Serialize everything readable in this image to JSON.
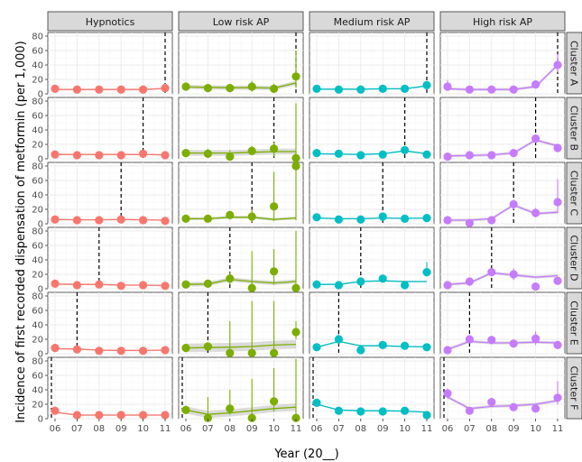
{
  "chart_data": {
    "type": "line",
    "ylabel": "Incidence of first recorded dispensation of metformin (per 1,000)",
    "xlabel": "Year (20__)",
    "x_tick_labels": [
      "06",
      "07",
      "08",
      "09",
      "10",
      "11"
    ],
    "y_tick_labels": [
      "0",
      "20",
      "40",
      "60",
      "80"
    ],
    "ylim": [
      0,
      85
    ],
    "x": [
      6,
      7,
      8,
      9,
      10,
      11
    ],
    "grid": true,
    "columns": [
      {
        "label": "Hypnotics",
        "color": "#f8766d"
      },
      {
        "label": "Low risk AP",
        "color": "#7cae00"
      },
      {
        "label": "Medium risk AP",
        "color": "#00bfc4"
      },
      {
        "label": "High risk AP",
        "color": "#c77cff"
      }
    ],
    "rows": [
      {
        "label": "Cluster A",
        "intervention_year": 11
      },
      {
        "label": "Cluster B",
        "intervention_year": 10
      },
      {
        "label": "Cluster C",
        "intervention_year": 9
      },
      {
        "label": "Cluster D",
        "intervention_year": 8
      },
      {
        "label": "Cluster E",
        "intervention_year": 7
      },
      {
        "label": "Cluster F",
        "intervention_year": 6
      }
    ],
    "panels": [
      [
        {
          "points": [
            7,
            6,
            6,
            6,
            6,
            8
          ],
          "lo": [
            5,
            5,
            5,
            5,
            5,
            4
          ],
          "hi": [
            9,
            8,
            8,
            8,
            8,
            12
          ],
          "fit": [
            6,
            6,
            6,
            6,
            6,
            7.5
          ],
          "band": 1
        },
        {
          "points": [
            10,
            8,
            8,
            10,
            7,
            24
          ],
          "lo": [
            7,
            5,
            5,
            3,
            1,
            8
          ],
          "hi": [
            13,
            11,
            12,
            18,
            14,
            60
          ],
          "fit": [
            9.5,
            9,
            8.5,
            8.5,
            8,
            15
          ],
          "band": 3
        },
        {
          "points": [
            7,
            6,
            6,
            7,
            7,
            12
          ],
          "lo": [
            5,
            4,
            4,
            5,
            5,
            8
          ],
          "hi": [
            9,
            8,
            8,
            9,
            9,
            16
          ],
          "fit": [
            6.5,
            6.5,
            6.5,
            7,
            7,
            11
          ],
          "band": 1
        },
        {
          "points": [
            10,
            6,
            6,
            6,
            13,
            40
          ],
          "lo": [
            6,
            3,
            3,
            3,
            8,
            30
          ],
          "hi": [
            19,
            10,
            10,
            10,
            18,
            55
          ],
          "fit": [
            7,
            6,
            6,
            6,
            10,
            40
          ],
          "band": 2
        }
      ],
      [
        {
          "points": [
            6,
            5,
            5,
            5,
            7,
            5
          ],
          "lo": [
            4,
            3,
            3,
            3,
            4,
            3
          ],
          "hi": [
            8,
            7,
            7,
            7,
            11,
            7
          ],
          "fit": [
            6,
            6,
            6,
            6,
            6,
            5.5
          ],
          "band": 1
        },
        {
          "points": [
            8,
            7,
            3,
            11,
            14,
            1
          ],
          "lo": [
            5,
            1,
            0,
            5,
            3,
            0
          ],
          "hi": [
            12,
            14,
            12,
            18,
            23,
            77
          ],
          "fit": [
            8,
            8,
            8,
            9,
            10,
            10
          ],
          "band": 4
        },
        {
          "points": [
            8,
            7,
            5,
            6,
            12,
            6
          ],
          "lo": [
            6,
            5,
            4,
            4,
            9,
            3
          ],
          "hi": [
            10,
            9,
            8,
            8,
            15,
            9
          ],
          "fit": [
            7,
            6.5,
            6,
            7,
            11,
            7
          ],
          "band": 1
        },
        {
          "points": [
            3,
            5,
            5,
            8,
            28,
            15
          ],
          "lo": [
            1,
            2,
            2,
            5,
            22,
            10
          ],
          "hi": [
            6,
            8,
            8,
            12,
            34,
            21
          ],
          "fit": [
            4,
            4.5,
            5.5,
            8,
            26,
            18
          ],
          "band": 2
        }
      ],
      [
        {
          "points": [
            6,
            5,
            5,
            6,
            5,
            4
          ],
          "lo": [
            4,
            3,
            3,
            4,
            3,
            2
          ],
          "hi": [
            8,
            7,
            7,
            8,
            7,
            6
          ],
          "fit": [
            6,
            5.5,
            5.5,
            6,
            5.5,
            5
          ],
          "band": 1
        },
        {
          "points": [
            7,
            7,
            12,
            10,
            24,
            80
          ],
          "lo": [
            4,
            4,
            6,
            2,
            4,
            5
          ],
          "hi": [
            10,
            10,
            18,
            20,
            72,
            83
          ],
          "fit": [
            7,
            7,
            9,
            9,
            6,
            8
          ],
          "band": 2
        },
        {
          "points": [
            9,
            6,
            6,
            10,
            7,
            8
          ],
          "lo": [
            7,
            4,
            4,
            7,
            5,
            5
          ],
          "hi": [
            11,
            8,
            8,
            13,
            9,
            11
          ],
          "fit": [
            8,
            7,
            7,
            8,
            7.5,
            8
          ],
          "band": 1
        },
        {
          "points": [
            5,
            1,
            5,
            27,
            15,
            30
          ],
          "lo": [
            2,
            0,
            2,
            20,
            9,
            15
          ],
          "hi": [
            8,
            4,
            9,
            33,
            22,
            62
          ],
          "fit": [
            5,
            5,
            7,
            26,
            14,
            16
          ],
          "band": 2
        }
      ],
      [
        {
          "points": [
            7,
            5,
            6,
            4,
            5,
            4
          ],
          "lo": [
            5,
            3,
            4,
            2,
            3,
            2
          ],
          "hi": [
            9,
            7,
            9,
            6,
            7,
            6
          ],
          "fit": [
            6.5,
            6,
            6,
            5,
            5,
            4.5
          ],
          "band": 1
        },
        {
          "points": [
            6,
            7,
            14,
            1,
            24,
            1
          ],
          "lo": [
            3,
            3,
            6,
            0,
            6,
            0
          ],
          "hi": [
            9,
            12,
            23,
            52,
            55,
            80
          ],
          "fit": [
            6,
            6.5,
            13,
            10,
            8,
            10
          ],
          "band": 3
        },
        {
          "points": [
            6,
            5,
            10,
            14,
            5,
            23
          ],
          "lo": [
            4,
            3,
            7,
            10,
            3,
            17
          ],
          "hi": [
            8,
            7,
            13,
            19,
            7,
            37
          ],
          "fit": [
            6,
            6,
            10,
            11,
            10,
            10
          ],
          "band": 1
        },
        {
          "points": [
            5,
            10,
            23,
            20,
            3,
            11
          ],
          "lo": [
            2,
            6,
            18,
            12,
            0,
            6
          ],
          "hi": [
            8,
            15,
            28,
            28,
            7,
            17
          ],
          "fit": [
            6,
            8,
            22,
            19,
            16,
            18
          ],
          "band": 2
        }
      ],
      [
        {
          "points": [
            8,
            6,
            4,
            4,
            4,
            5
          ],
          "lo": [
            6,
            4,
            2,
            2,
            2,
            3
          ],
          "hi": [
            10,
            8,
            6,
            6,
            6,
            7
          ],
          "fit": [
            7,
            6.5,
            5,
            4.5,
            4.5,
            5
          ],
          "band": 1
        },
        {
          "points": [
            8,
            10,
            1,
            1,
            1,
            30
          ],
          "lo": [
            5,
            6,
            0,
            0,
            0,
            20
          ],
          "hi": [
            11,
            15,
            45,
            73,
            73,
            45
          ],
          "fit": [
            8,
            8.5,
            9,
            10,
            12,
            13
          ],
          "band": 6
        },
        {
          "points": [
            9,
            20,
            5,
            12,
            11,
            9
          ],
          "lo": [
            7,
            13,
            3,
            8,
            7,
            6
          ],
          "hi": [
            11,
            27,
            8,
            17,
            16,
            13
          ],
          "fit": [
            9,
            17,
            11,
            11,
            10,
            9.5
          ],
          "band": 1
        },
        {
          "points": [
            5,
            20,
            19,
            14,
            21,
            12
          ],
          "lo": [
            2,
            15,
            14,
            10,
            12,
            7
          ],
          "hi": [
            8,
            26,
            25,
            19,
            31,
            18
          ],
          "fit": [
            6,
            17,
            15,
            15,
            16,
            15
          ],
          "band": 2
        }
      ],
      [
        {
          "points": [
            11,
            5,
            5,
            5,
            5,
            5
          ],
          "lo": [
            7,
            3,
            3,
            3,
            3,
            3
          ],
          "hi": [
            15,
            7,
            7,
            7,
            7,
            7
          ],
          "fit": [
            9,
            5,
            5,
            5,
            5,
            5
          ],
          "band": 1
        },
        {
          "points": [
            12,
            1,
            14,
            1,
            24,
            1
          ],
          "lo": [
            7,
            0,
            6,
            0,
            10,
            0
          ],
          "hi": [
            18,
            30,
            40,
            55,
            70,
            83
          ],
          "fit": [
            12,
            6,
            8,
            11,
            14,
            16
          ],
          "band": 5
        },
        {
          "points": [
            22,
            11,
            10,
            10,
            11,
            5
          ],
          "lo": [
            17,
            8,
            7,
            7,
            7,
            3
          ],
          "hi": [
            27,
            14,
            13,
            13,
            15,
            8
          ],
          "fit": [
            20,
            12,
            11,
            11,
            10.5,
            9
          ],
          "band": 1
        },
        {
          "points": [
            35,
            11,
            23,
            16,
            14,
            29
          ],
          "lo": [
            28,
            7,
            17,
            12,
            9,
            20
          ],
          "hi": [
            42,
            15,
            29,
            21,
            20,
            52
          ],
          "fit": [
            30,
            14,
            17,
            18,
            20,
            25
          ],
          "band": 2
        }
      ]
    ]
  }
}
